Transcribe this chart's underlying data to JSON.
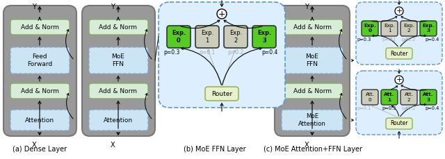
{
  "add_norm_color": "#d8edd8",
  "feed_forward_color": "#cce5f5",
  "attention_color": "#cce5f5",
  "moe_color": "#cce5f5",
  "router_color": "#e8f0cc",
  "expert_active_color": "#55cc22",
  "expert_inactive_color": "#ccccbb",
  "panel_bg_color": "#999999",
  "expand_bg_color": "#ddeeff",
  "panel1_label": "(a) Dense Layer",
  "panel2_label": "(b) MoE FFN Layer",
  "panel3_label": "(c) MoE Attention+FFN Layer"
}
